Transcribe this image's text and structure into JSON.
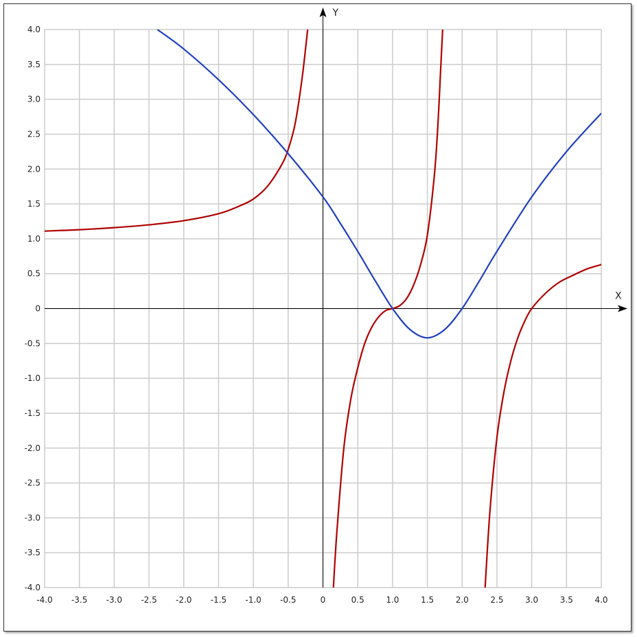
{
  "chart_data": {
    "type": "line",
    "title": "",
    "xlabel": "X",
    "ylabel": "Y",
    "xlim": [
      -4.0,
      4.0
    ],
    "ylim": [
      -4.0,
      4.0
    ],
    "grid": true,
    "x_tick_step": 0.5,
    "y_tick_step": 0.5,
    "x_tick_labels": [
      "-4.0",
      "-3.5",
      "-3.0",
      "-2.5",
      "-2.0",
      "-1.5",
      "-1.0",
      "-0.5",
      "0",
      "0.5",
      "1.0",
      "1.5",
      "2.0",
      "2.5",
      "3.0",
      "3.5",
      "4.0"
    ],
    "y_tick_labels": [
      "4.0",
      "3.5",
      "3.0",
      "2.5",
      "2.0",
      "1.5",
      "1.0",
      "0.5",
      "0",
      "-0.5",
      "-1.0",
      "-1.5",
      "-2.0",
      "-2.5",
      "-3.0",
      "-3.5",
      "-4.0"
    ],
    "colors": {
      "red": "#b00000",
      "blue": "#1f3fbf",
      "grid": "#cccccc",
      "axis": "#000000"
    },
    "series": [
      {
        "color": "#b00000",
        "segments": [
          [
            [
              -4.0,
              1.11
            ],
            [
              -3.5,
              1.13
            ],
            [
              -3.0,
              1.16
            ],
            [
              -2.5,
              1.2
            ],
            [
              -2.0,
              1.26
            ],
            [
              -1.5,
              1.36
            ],
            [
              -1.2,
              1.47
            ],
            [
              -1.0,
              1.57
            ],
            [
              -0.8,
              1.75
            ],
            [
              -0.6,
              2.05
            ],
            [
              -0.5,
              2.28
            ],
            [
              -0.4,
              2.65
            ],
            [
              -0.3,
              3.3
            ],
            [
              -0.22,
              4.0
            ]
          ],
          [
            [
              0.15,
              -4.0
            ],
            [
              0.2,
              -3.2
            ],
            [
              0.3,
              -2.0
            ],
            [
              0.4,
              -1.3
            ],
            [
              0.5,
              -0.85
            ],
            [
              0.6,
              -0.5
            ],
            [
              0.7,
              -0.27
            ],
            [
              0.8,
              -0.12
            ],
            [
              0.9,
              -0.03
            ],
            [
              1.0,
              0.0
            ],
            [
              1.1,
              0.04
            ],
            [
              1.2,
              0.14
            ],
            [
              1.3,
              0.33
            ],
            [
              1.4,
              0.62
            ],
            [
              1.5,
              1.05
            ],
            [
              1.6,
              1.9
            ],
            [
              1.65,
              2.6
            ],
            [
              1.69,
              3.4
            ],
            [
              1.72,
              4.0
            ]
          ],
          [
            [
              2.33,
              -4.0
            ],
            [
              2.4,
              -2.9
            ],
            [
              2.5,
              -1.85
            ],
            [
              2.6,
              -1.2
            ],
            [
              2.7,
              -0.75
            ],
            [
              2.8,
              -0.42
            ],
            [
              2.9,
              -0.18
            ],
            [
              3.0,
              0.0
            ],
            [
              3.2,
              0.22
            ],
            [
              3.4,
              0.38
            ],
            [
              3.6,
              0.48
            ],
            [
              3.8,
              0.57
            ],
            [
              4.0,
              0.63
            ]
          ]
        ]
      },
      {
        "color": "#1f3fbf",
        "segments": [
          [
            [
              -2.38,
              4.0
            ],
            [
              -2.0,
              3.72
            ],
            [
              -1.5,
              3.28
            ],
            [
              -1.0,
              2.78
            ],
            [
              -0.5,
              2.22
            ],
            [
              0.0,
              1.6
            ],
            [
              0.25,
              1.22
            ],
            [
              0.5,
              0.82
            ],
            [
              0.75,
              0.4
            ],
            [
              1.0,
              0.0
            ],
            [
              1.25,
              -0.3
            ],
            [
              1.5,
              -0.42
            ],
            [
              1.75,
              -0.3
            ],
            [
              2.0,
              0.0
            ],
            [
              2.25,
              0.4
            ],
            [
              2.5,
              0.82
            ],
            [
              3.0,
              1.6
            ],
            [
              3.5,
              2.25
            ],
            [
              4.0,
              2.8
            ]
          ]
        ]
      }
    ]
  }
}
